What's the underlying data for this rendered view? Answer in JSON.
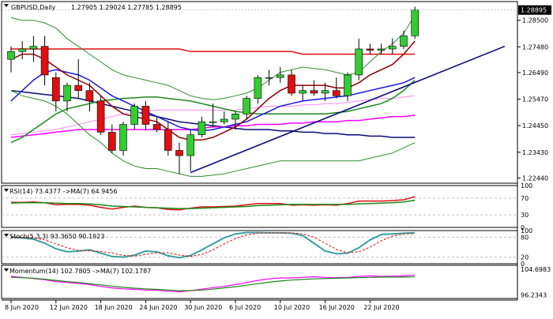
{
  "colors": {
    "bull": "#33cc33",
    "bear": "#e01010",
    "border": "#000000",
    "grid": "#c0c0c0",
    "price_tag_bg": "#000000",
    "price_tag_fg": "#ffffff"
  },
  "chart_data": [
    {
      "type": "candlestick",
      "title": "GBPUSD,Daily",
      "ohlc_readout": [
        "1.27905",
        "1.29024",
        "1.27785",
        "1.28895"
      ],
      "ylim": [
        1.2224,
        1.2922
      ],
      "y_ticks": [
        "1.28895",
        "1.28500",
        "1.27480",
        "1.26490",
        "1.25470",
        "1.24450",
        "1.23430",
        "1.22440"
      ],
      "last_price": "1.28895",
      "x_labels": [
        "8 Jun 2020",
        "12 Jun 2020",
        "18 Jun 2020",
        "24 Jun 2020",
        "30 Jun 2020",
        "6 Jul 2020",
        "10 Jul 2020",
        "16 Jul 2020",
        "22 Jul 2020"
      ],
      "x_label_index": [
        0,
        4,
        8,
        12,
        16,
        20,
        24,
        28,
        32
      ],
      "candles": [
        {
          "o": 1.27,
          "h": 1.275,
          "l": 1.265,
          "c": 1.273
        },
        {
          "o": 1.273,
          "h": 1.277,
          "l": 1.27,
          "c": 1.274
        },
        {
          "o": 1.274,
          "h": 1.279,
          "l": 1.269,
          "c": 1.275
        },
        {
          "o": 1.275,
          "h": 1.279,
          "l": 1.26,
          "c": 1.264
        },
        {
          "o": 1.263,
          "h": 1.265,
          "l": 1.25,
          "c": 1.254
        },
        {
          "o": 1.254,
          "h": 1.261,
          "l": 1.25,
          "c": 1.26
        },
        {
          "o": 1.26,
          "h": 1.27,
          "l": 1.255,
          "c": 1.258
        },
        {
          "o": 1.258,
          "h": 1.261,
          "l": 1.25,
          "c": 1.254
        },
        {
          "o": 1.254,
          "h": 1.256,
          "l": 1.241,
          "c": 1.242
        },
        {
          "o": 1.242,
          "h": 1.245,
          "l": 1.234,
          "c": 1.235
        },
        {
          "o": 1.235,
          "h": 1.246,
          "l": 1.233,
          "c": 1.245
        },
        {
          "o": 1.245,
          "h": 1.253,
          "l": 1.243,
          "c": 1.252
        },
        {
          "o": 1.252,
          "h": 1.254,
          "l": 1.243,
          "c": 1.245
        },
        {
          "o": 1.245,
          "h": 1.248,
          "l": 1.242,
          "c": 1.243
        },
        {
          "o": 1.243,
          "h": 1.246,
          "l": 1.233,
          "c": 1.235
        },
        {
          "o": 1.235,
          "h": 1.238,
          "l": 1.226,
          "c": 1.233
        },
        {
          "o": 1.233,
          "h": 1.243,
          "l": 1.227,
          "c": 1.241
        },
        {
          "o": 1.241,
          "h": 1.248,
          "l": 1.24,
          "c": 1.246
        },
        {
          "o": 1.246,
          "h": 1.253,
          "l": 1.244,
          "c": 1.246
        },
        {
          "o": 1.246,
          "h": 1.25,
          "l": 1.245,
          "c": 1.247
        },
        {
          "o": 1.247,
          "h": 1.25,
          "l": 1.243,
          "c": 1.249
        },
        {
          "o": 1.249,
          "h": 1.256,
          "l": 1.247,
          "c": 1.255
        },
        {
          "o": 1.255,
          "h": 1.264,
          "l": 1.253,
          "c": 1.263
        },
        {
          "o": 1.263,
          "h": 1.266,
          "l": 1.26,
          "c": 1.263
        },
        {
          "o": 1.263,
          "h": 1.267,
          "l": 1.261,
          "c": 1.264
        },
        {
          "o": 1.264,
          "h": 1.266,
          "l": 1.256,
          "c": 1.257
        },
        {
          "o": 1.257,
          "h": 1.26,
          "l": 1.254,
          "c": 1.258
        },
        {
          "o": 1.258,
          "h": 1.262,
          "l": 1.256,
          "c": 1.257
        },
        {
          "o": 1.257,
          "h": 1.261,
          "l": 1.254,
          "c": 1.258
        },
        {
          "o": 1.258,
          "h": 1.263,
          "l": 1.255,
          "c": 1.256
        },
        {
          "o": 1.256,
          "h": 1.265,
          "l": 1.254,
          "c": 1.264
        },
        {
          "o": 1.264,
          "h": 1.278,
          "l": 1.262,
          "c": 1.274
        },
        {
          "o": 1.274,
          "h": 1.276,
          "l": 1.272,
          "c": 1.2735
        },
        {
          "o": 1.2735,
          "h": 1.276,
          "l": 1.272,
          "c": 1.274
        },
        {
          "o": 1.274,
          "h": 1.278,
          "l": 1.272,
          "c": 1.275
        },
        {
          "o": 1.275,
          "h": 1.281,
          "l": 1.274,
          "c": 1.279
        },
        {
          "o": 1.27905,
          "h": 1.29024,
          "l": 1.27785,
          "c": 1.28895
        }
      ],
      "overlays": [
        {
          "color": "#e01010",
          "width": 1.5,
          "values": [
            1.274,
            1.274,
            1.274,
            1.274,
            1.274,
            1.274,
            1.274,
            1.274,
            1.274,
            1.274,
            1.274,
            1.274,
            1.274,
            1.274,
            1.274,
            1.274,
            1.273,
            1.273,
            1.273,
            1.273,
            1.273,
            1.273,
            1.273,
            1.273,
            1.273,
            1.273,
            1.272,
            1.272,
            1.272,
            1.272,
            1.272,
            1.272,
            1.272,
            1.272,
            1.272,
            1.272,
            1.272
          ]
        },
        {
          "color": "#0a0a7a",
          "width": 1.5,
          "values": [
            1.258,
            1.2575,
            1.257,
            1.2565,
            1.256,
            1.2555,
            1.255,
            1.254,
            1.253,
            1.252,
            1.251,
            1.25,
            1.249,
            1.248,
            1.247,
            1.246,
            1.2455,
            1.245,
            1.2445,
            1.244,
            1.2435,
            1.243,
            1.243,
            1.243,
            1.2425,
            1.2425,
            1.242,
            1.242,
            1.2415,
            1.2415,
            1.241,
            1.241,
            1.2405,
            1.2405,
            1.24,
            1.24,
            1.24
          ]
        },
        {
          "color": "#ff00ff",
          "width": 1.5,
          "values": [
            1.24,
            1.2405,
            1.241,
            1.2415,
            1.242,
            1.2425,
            1.243,
            1.243,
            1.243,
            1.243,
            1.243,
            1.243,
            1.243,
            1.243,
            1.243,
            1.243,
            1.243,
            1.2435,
            1.244,
            1.244,
            1.2445,
            1.2445,
            1.245,
            1.245,
            1.245,
            1.2455,
            1.2455,
            1.246,
            1.246,
            1.246,
            1.2465,
            1.2465,
            1.247,
            1.2475,
            1.248,
            1.248,
            1.2485
          ]
        },
        {
          "color": "#ff88ff",
          "width": 1,
          "values": [
            1.241,
            1.2415,
            1.242,
            1.2425,
            1.243,
            1.244,
            1.245,
            1.246,
            1.247,
            1.248,
            1.249,
            1.2495,
            1.25,
            1.2505,
            1.2505,
            1.2505,
            1.2505,
            1.2505,
            1.2505,
            1.2505,
            1.2505,
            1.251,
            1.2515,
            1.252,
            1.252,
            1.252,
            1.2525,
            1.2525,
            1.253,
            1.253,
            1.2535,
            1.254,
            1.2545,
            1.255,
            1.255,
            1.2555,
            1.256
          ]
        },
        {
          "color": "#1a8a1a",
          "width": 1.5,
          "values": [
            1.238,
            1.24,
            1.243,
            1.246,
            1.249,
            1.251,
            1.252,
            1.253,
            1.254,
            1.2545,
            1.255,
            1.2552,
            1.2555,
            1.2555,
            1.255,
            1.2545,
            1.254,
            1.253,
            1.252,
            1.251,
            1.25,
            1.2495,
            1.249,
            1.249,
            1.249,
            1.249,
            1.249,
            1.249,
            1.249,
            1.2495,
            1.25,
            1.251,
            1.252,
            1.253,
            1.255,
            1.258,
            1.262
          ]
        },
        {
          "color": "#1a1ae0",
          "width": 1.5,
          "values": [
            1.254,
            1.258,
            1.262,
            1.265,
            1.266,
            1.265,
            1.264,
            1.262,
            1.259,
            1.256,
            1.254,
            1.252,
            1.25,
            1.248,
            1.246,
            1.244,
            1.243,
            1.2425,
            1.243,
            1.244,
            1.245,
            1.246,
            1.248,
            1.25,
            1.252,
            1.253,
            1.254,
            1.2545,
            1.255,
            1.2555,
            1.256,
            1.257,
            1.258,
            1.259,
            1.26,
            1.261,
            1.263
          ]
        },
        {
          "color": "#8b0000",
          "width": 1.5,
          "values": [
            1.27,
            1.272,
            1.272,
            1.27,
            1.267,
            1.264,
            1.262,
            1.26,
            1.256,
            1.252,
            1.249,
            1.248,
            1.247,
            1.246,
            1.243,
            1.24,
            1.239,
            1.239,
            1.24,
            1.242,
            1.244,
            1.247,
            1.251,
            1.255,
            1.258,
            1.26,
            1.26,
            1.26,
            1.26,
            1.259,
            1.259,
            1.261,
            1.264,
            1.266,
            1.268,
            1.272,
            1.277
          ]
        },
        {
          "color": "#2e8b2e",
          "width": 1,
          "values": [
            1.286,
            1.285,
            1.285,
            1.284,
            1.282,
            1.278,
            1.275,
            1.272,
            1.269,
            1.266,
            1.264,
            1.263,
            1.262,
            1.261,
            1.26,
            1.258,
            1.256,
            1.255,
            1.2545,
            1.255,
            1.256,
            1.257,
            1.259,
            1.262,
            1.265,
            1.266,
            1.267,
            1.2665,
            1.266,
            1.265,
            1.264,
            1.265,
            1.269,
            1.273,
            1.276,
            1.28,
            1.287
          ]
        },
        {
          "color": "#2e8b2e",
          "width": 1,
          "values": [
            1.258,
            1.256,
            1.255,
            1.254,
            1.252,
            1.249,
            1.245,
            1.241,
            1.238,
            1.234,
            1.231,
            1.229,
            1.228,
            1.228,
            1.227,
            1.226,
            1.225,
            1.225,
            1.2255,
            1.226,
            1.227,
            1.228,
            1.229,
            1.23,
            1.231,
            1.231,
            1.231,
            1.231,
            1.231,
            1.231,
            1.231,
            1.231,
            1.232,
            1.233,
            1.234,
            1.236,
            1.238
          ]
        }
      ],
      "trendline": {
        "color": "#0a0a7a",
        "x0": 16,
        "y0": 1.2265,
        "x1": 44,
        "y1": 1.275
      }
    },
    {
      "type": "line",
      "title": "RSI(14) 73.4377  ->MA(7) 64.9456",
      "ylim": [
        0,
        100
      ],
      "y_ticks": [
        "100",
        "70",
        "30",
        "0"
      ],
      "levels": [
        70,
        30
      ],
      "series": [
        {
          "color": "#e01010",
          "values": [
            60,
            60,
            61,
            59,
            54,
            55,
            55,
            53,
            48,
            44,
            48,
            51,
            48,
            47,
            43,
            42,
            46,
            49,
            49,
            50,
            51,
            54,
            57,
            57,
            57,
            53,
            54,
            53,
            54,
            53,
            57,
            63,
            63,
            63,
            64,
            66,
            73.4
          ]
        },
        {
          "color": "#1a8a1a",
          "values": [
            58,
            59,
            59,
            59,
            58,
            57,
            57,
            56,
            54,
            51,
            50,
            49,
            48,
            47,
            46,
            45,
            45,
            46,
            47,
            48,
            49,
            50,
            52,
            53,
            54,
            55,
            55,
            55,
            55,
            55,
            55,
            56,
            57,
            58,
            59,
            61,
            64.9
          ]
        }
      ]
    },
    {
      "type": "line",
      "title": "Stoch(5,3,3) 93.3650 90.1923",
      "ylim": [
        0,
        100
      ],
      "y_ticks": [
        "100",
        "80",
        "20",
        "0"
      ],
      "levels": [
        80,
        20
      ],
      "series": [
        {
          "color": "#3aa0a0",
          "values": [
            80,
            78,
            74,
            62,
            45,
            36,
            38,
            42,
            32,
            22,
            20,
            26,
            38,
            36,
            24,
            18,
            25,
            42,
            60,
            78,
            90,
            94,
            94,
            93,
            93,
            92,
            85,
            62,
            38,
            30,
            32,
            48,
            72,
            88,
            90,
            92,
            93.4
          ]
        },
        {
          "color": "#e01010",
          "values": [
            82,
            80,
            78,
            72,
            60,
            48,
            40,
            39,
            37,
            32,
            25,
            23,
            28,
            33,
            33,
            26,
            22,
            28,
            42,
            60,
            76,
            87,
            92,
            93,
            93,
            93,
            90,
            80,
            62,
            43,
            33,
            36,
            50,
            69,
            83,
            90,
            90.2
          ]
        }
      ]
    },
    {
      "type": "line",
      "title": "Momentum(14) 102.7805  ->MA(7) 102.1787",
      "ylim": [
        95,
        106
      ],
      "y_ticks": [
        "104.6983",
        "96.2343"
      ],
      "series": [
        {
          "color": "#ff00ff",
          "values": [
            102.3,
            102.0,
            101.6,
            101.2,
            100.6,
            100.3,
            100.0,
            99.6,
            99.0,
            98.5,
            98.2,
            98.0,
            97.8,
            97.7,
            97.4,
            97.2,
            97.6,
            98.1,
            98.6,
            99.0,
            99.6,
            100.3,
            101.0,
            101.5,
            101.8,
            101.8,
            102.0,
            102.2,
            102.0,
            101.9,
            102.0,
            102.3,
            102.5,
            102.3,
            102.4,
            102.5,
            102.8
          ]
        },
        {
          "color": "#1a8a1a",
          "values": [
            102.0,
            101.9,
            101.7,
            101.4,
            101.0,
            100.6,
            100.3,
            99.9,
            99.5,
            99.1,
            98.7,
            98.4,
            98.2,
            98.0,
            97.8,
            97.6,
            97.6,
            97.8,
            98.1,
            98.5,
            98.9,
            99.4,
            99.9,
            100.4,
            100.8,
            101.1,
            101.3,
            101.5,
            101.6,
            101.7,
            101.8,
            101.9,
            102.0,
            102.1,
            102.1,
            102.1,
            102.2
          ]
        }
      ]
    }
  ]
}
